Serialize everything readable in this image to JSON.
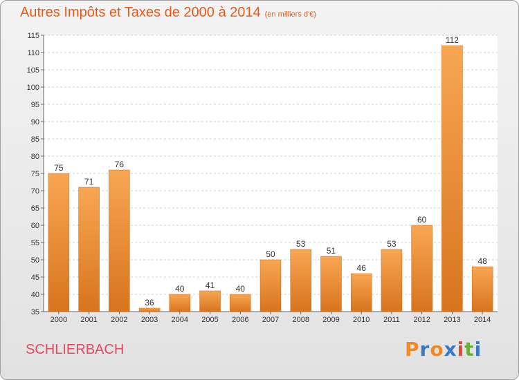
{
  "header": {
    "title": "Autres Impôts et Taxes de 2000 à 2014",
    "unit": "(en milliers d'€)"
  },
  "footer": {
    "town": "SCHLIERBACH",
    "logo_letters": [
      "P",
      "r",
      "o",
      "x",
      "i",
      "t",
      "i"
    ],
    "logo_colors": [
      "#f08a24",
      "#3a78c8",
      "#f08a24",
      "#3a78c8",
      "#e04a3a",
      "#6ab03a",
      "#3a78c8"
    ]
  },
  "colors": {
    "bar_top": "#f8a653",
    "bar_bottom": "#d8741e",
    "accent": "#e85a18"
  },
  "chart_data": {
    "type": "bar",
    "title": "Autres Impôts et Taxes de 2000 à 2014",
    "subtitle": "(en milliers d'€)",
    "categories": [
      "2000",
      "2001",
      "2002",
      "2003",
      "2004",
      "2005",
      "2006",
      "2007",
      "2008",
      "2009",
      "2010",
      "2011",
      "2012",
      "2013",
      "2014"
    ],
    "values": [
      75,
      71,
      76,
      36,
      40,
      41,
      40,
      50,
      53,
      51,
      46,
      53,
      60,
      112,
      48
    ],
    "ylim": [
      35,
      115
    ],
    "yticks": [
      35,
      40,
      45,
      50,
      55,
      60,
      65,
      70,
      75,
      80,
      85,
      90,
      95,
      100,
      105,
      110,
      115
    ],
    "grid": true,
    "xlabel": "",
    "ylabel": ""
  }
}
